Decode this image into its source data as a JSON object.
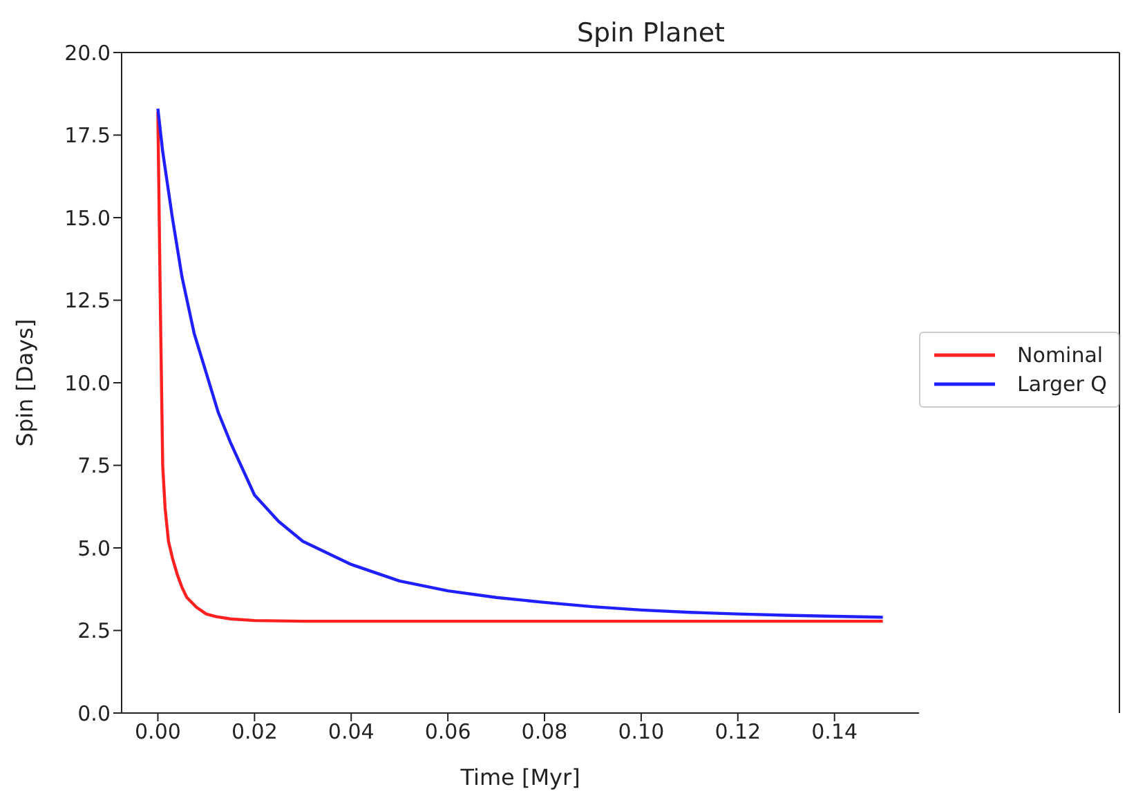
{
  "chart_data": {
    "type": "line",
    "title": "Spin Planet",
    "xlabel": "Time [Myr]",
    "ylabel": "Spin [Days]",
    "xlim": [
      -0.0075,
      0.1575
    ],
    "xticks": [
      {
        "value": 0,
        "label": "0.00"
      },
      {
        "value": 0.02,
        "label": "0.02"
      },
      {
        "value": 0.04,
        "label": "0.04"
      },
      {
        "value": 0.06,
        "label": "0.06"
      },
      {
        "value": 0.08,
        "label": "0.08"
      },
      {
        "value": 0.1,
        "label": "0.10"
      },
      {
        "value": 0.12,
        "label": "0.12"
      },
      {
        "value": 0.14,
        "label": "0.14"
      }
    ],
    "ylim": [
      0,
      20
    ],
    "yticks": [
      {
        "value": 0,
        "label": "0.0"
      },
      {
        "value": 2.5,
        "label": "2.5"
      },
      {
        "value": 5,
        "label": "5.0"
      },
      {
        "value": 7.5,
        "label": "7.5"
      },
      {
        "value": 10,
        "label": "10.0"
      },
      {
        "value": 12.5,
        "label": "12.5"
      },
      {
        "value": 15,
        "label": "15.0"
      },
      {
        "value": 17.5,
        "label": "17.5"
      },
      {
        "value": 20,
        "label": "20.0"
      }
    ],
    "legend": "right",
    "marker": "none",
    "line_style": "solid",
    "series": [
      {
        "name": "Nominal",
        "color": "#ff2020",
        "x": [
          0,
          0.0005,
          0.001,
          0.0015,
          0.0022,
          0.003,
          0.004,
          0.005,
          0.006,
          0.008,
          0.01,
          0.012,
          0.015,
          0.02,
          0.03,
          0.05,
          0.08,
          0.1,
          0.12,
          0.15
        ],
        "values": [
          18.2,
          12.5,
          7.5,
          6.2,
          5.2,
          4.7,
          4.2,
          3.8,
          3.5,
          3.2,
          3.0,
          2.92,
          2.85,
          2.8,
          2.78,
          2.78,
          2.78,
          2.78,
          2.78,
          2.78
        ]
      },
      {
        "name": "Larger Q",
        "color": "#2020ff",
        "x": [
          0,
          0.001,
          0.002,
          0.003,
          0.005,
          0.0075,
          0.01,
          0.0125,
          0.015,
          0.02,
          0.025,
          0.03,
          0.04,
          0.05,
          0.06,
          0.07,
          0.08,
          0.09,
          0.1,
          0.11,
          0.12,
          0.13,
          0.14,
          0.15
        ],
        "values": [
          18.3,
          17.0,
          16.0,
          15.0,
          13.2,
          11.5,
          10.3,
          9.1,
          8.2,
          6.6,
          5.8,
          5.2,
          4.5,
          4.0,
          3.7,
          3.5,
          3.35,
          3.22,
          3.12,
          3.05,
          3.0,
          2.96,
          2.93,
          2.9
        ]
      }
    ]
  }
}
